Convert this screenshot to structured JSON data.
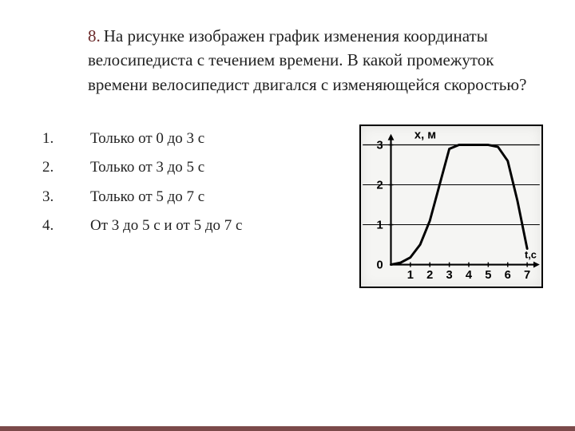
{
  "question": {
    "number": "8.",
    "text": "На рисунке изображен график изменения координаты велосипедиста с течением времени. В какой промежуток времени велосипедист двигался с изменяющейся скоростью?",
    "number_color": "#6b2a2a",
    "text_color": "#222222",
    "fontsize": 21
  },
  "answers": [
    "Только от 0 до 3 с",
    "Только от 3 до 5 с",
    "Только от 5 до 7 с",
    "От 3 до 5 с и от 5 до 7 с"
  ],
  "chart": {
    "type": "line",
    "x_label_top": "х, м",
    "x_label_right": "t,c",
    "xlim": [
      0,
      7
    ],
    "ylim": [
      0,
      3
    ],
    "xticks": [
      1,
      2,
      3,
      4,
      5,
      6,
      7
    ],
    "yticks": [
      0,
      1,
      2,
      3
    ],
    "axis_color": "#000000",
    "grid_color": "#000000",
    "line_color": "#000000",
    "line_width": 3,
    "tick_fontsize": 15,
    "label_fontsize": 15,
    "background_color": "#f5f5f3",
    "border_color": "#000000",
    "y_gridlines": [
      1,
      2,
      3
    ],
    "curve_points": [
      [
        0,
        0
      ],
      [
        0.5,
        0.05
      ],
      [
        1,
        0.18
      ],
      [
        1.5,
        0.5
      ],
      [
        2,
        1.1
      ],
      [
        2.5,
        2.0
      ],
      [
        3,
        2.9
      ],
      [
        3.5,
        3
      ],
      [
        5,
        3
      ],
      [
        5.5,
        2.95
      ],
      [
        6,
        2.6
      ],
      [
        6.5,
        1.6
      ],
      [
        7,
        0.4
      ]
    ]
  }
}
